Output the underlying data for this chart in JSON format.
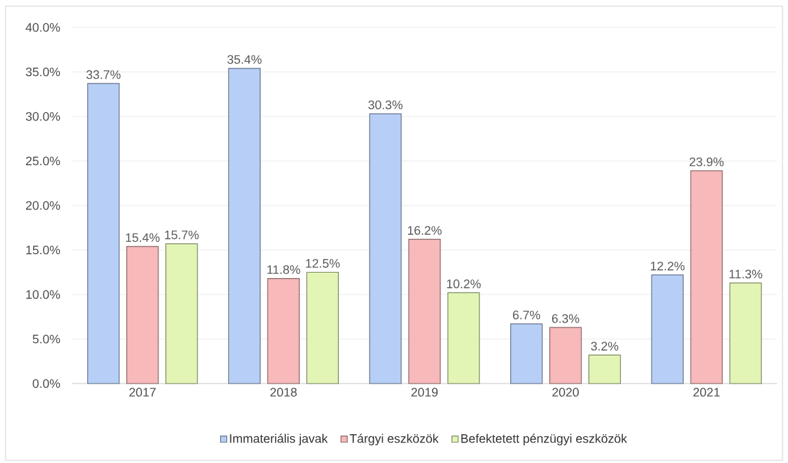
{
  "chart_data": {
    "type": "bar",
    "categories": [
      "2017",
      "2018",
      "2019",
      "2020",
      "2021"
    ],
    "series": [
      {
        "name": "Immateriális javak",
        "color": "#b7cff7",
        "values": [
          33.7,
          35.4,
          30.3,
          6.7,
          12.2
        ],
        "value_labels": [
          "33.7%",
          "35.4%",
          "30.3%",
          "6.7%",
          "12.2%"
        ]
      },
      {
        "name": "Tárgyi eszközök",
        "color": "#f7b9b9",
        "values": [
          15.4,
          11.8,
          16.2,
          6.3,
          23.9
        ],
        "value_labels": [
          "15.4%",
          "11.8%",
          "16.2%",
          "6.3%",
          "23.9%"
        ]
      },
      {
        "name": "Befektetett pénzügyi eszközök",
        "color": "#e2f5b5",
        "values": [
          15.7,
          12.5,
          10.2,
          3.2,
          11.3
        ],
        "value_labels": [
          "15.7%",
          "12.5%",
          "10.2%",
          "3.2%",
          "11.3%"
        ]
      }
    ],
    "ylim": [
      0,
      40
    ],
    "yticks": [
      {
        "value": 0,
        "label": "0.0%"
      },
      {
        "value": 5,
        "label": "5.0%"
      },
      {
        "value": 10,
        "label": "10.0%"
      },
      {
        "value": 15,
        "label": "15.0%"
      },
      {
        "value": 20,
        "label": "20.0%"
      },
      {
        "value": 25,
        "label": "25.0%"
      },
      {
        "value": 30,
        "label": "30.0%"
      },
      {
        "value": 35,
        "label": "35.0%"
      },
      {
        "value": 40,
        "label": "40.0%"
      }
    ],
    "grid": "y",
    "legend": "bottom"
  }
}
